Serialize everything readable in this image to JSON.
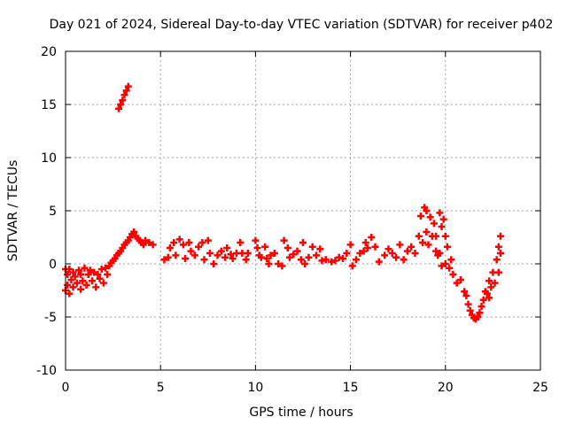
{
  "chart_data": {
    "type": "scatter",
    "title": "Day 021 of 2024, Sidereal Day-to-day VTEC variation (SDTVAR) for receiver p402",
    "xlabel": "GPS time / hours",
    "ylabel": "SDTVAR / TECUs",
    "xlim": [
      0,
      25
    ],
    "ylim": [
      -10,
      20
    ],
    "xticks": [
      0,
      5,
      10,
      15,
      20,
      25
    ],
    "xtick_labels": [
      "0",
      "5",
      "10",
      "15",
      "20",
      "25"
    ],
    "yticks": [
      -10,
      -5,
      0,
      5,
      10,
      15,
      20
    ],
    "ytick_labels": [
      "-10",
      "-5",
      "0",
      "5",
      "10",
      "15",
      "20"
    ],
    "grid": true,
    "marker": "+",
    "series": [
      {
        "name": "SDTVAR",
        "color": "#ff0000",
        "points": [
          [
            0.0,
            -0.5
          ],
          [
            0.0,
            -2.5
          ],
          [
            0.1,
            -1.0
          ],
          [
            0.1,
            -2.0
          ],
          [
            0.2,
            -0.5
          ],
          [
            0.2,
            -2.8
          ],
          [
            0.3,
            -1.5
          ],
          [
            0.4,
            -0.8
          ],
          [
            0.4,
            -2.2
          ],
          [
            0.5,
            -1.2
          ],
          [
            0.6,
            -1.8
          ],
          [
            0.7,
            -0.6
          ],
          [
            0.8,
            -1.0
          ],
          [
            0.8,
            -2.4
          ],
          [
            0.9,
            -1.6
          ],
          [
            1.0,
            -0.4
          ],
          [
            1.1,
            -2.0
          ],
          [
            1.2,
            -1.0
          ],
          [
            1.3,
            -0.6
          ],
          [
            1.4,
            -1.6
          ],
          [
            1.5,
            -0.8
          ],
          [
            1.6,
            -2.2
          ],
          [
            1.7,
            -1.0
          ],
          [
            1.8,
            -1.4
          ],
          [
            1.9,
            -0.5
          ],
          [
            2.0,
            -1.8
          ],
          [
            2.1,
            -0.4
          ],
          [
            2.2,
            -1.0
          ],
          [
            2.3,
            -0.2
          ],
          [
            2.4,
            0.1
          ],
          [
            2.5,
            0.3
          ],
          [
            2.6,
            0.5
          ],
          [
            2.7,
            0.8
          ],
          [
            2.8,
            1.0
          ],
          [
            2.9,
            1.2
          ],
          [
            3.0,
            1.5
          ],
          [
            3.1,
            1.8
          ],
          [
            3.2,
            2.0
          ],
          [
            3.3,
            2.2
          ],
          [
            3.4,
            2.5
          ],
          [
            3.5,
            2.8
          ],
          [
            3.6,
            3.0
          ],
          [
            3.7,
            2.6
          ],
          [
            3.8,
            2.4
          ],
          [
            3.9,
            2.2
          ],
          [
            4.0,
            2.0
          ],
          [
            4.1,
            1.8
          ],
          [
            4.2,
            2.2
          ],
          [
            4.4,
            2.0
          ],
          [
            4.6,
            1.8
          ],
          [
            2.8,
            14.6
          ],
          [
            2.9,
            15.0
          ],
          [
            3.0,
            15.4
          ],
          [
            3.1,
            15.9
          ],
          [
            3.2,
            16.3
          ],
          [
            3.3,
            16.7
          ],
          [
            5.2,
            0.4
          ],
          [
            5.4,
            0.6
          ],
          [
            5.5,
            1.5
          ],
          [
            5.7,
            2.0
          ],
          [
            5.8,
            0.8
          ],
          [
            6.0,
            2.3
          ],
          [
            6.2,
            1.8
          ],
          [
            6.3,
            0.5
          ],
          [
            6.5,
            2.0
          ],
          [
            6.6,
            1.2
          ],
          [
            6.8,
            0.8
          ],
          [
            7.0,
            1.6
          ],
          [
            7.2,
            2.0
          ],
          [
            7.3,
            0.4
          ],
          [
            7.5,
            2.2
          ],
          [
            7.6,
            1.0
          ],
          [
            7.8,
            0.0
          ],
          [
            8.0,
            0.8
          ],
          [
            8.2,
            1.2
          ],
          [
            8.4,
            0.6
          ],
          [
            8.5,
            1.5
          ],
          [
            8.7,
            0.9
          ],
          [
            8.8,
            0.5
          ],
          [
            9.0,
            1.0
          ],
          [
            9.2,
            2.0
          ],
          [
            9.3,
            1.0
          ],
          [
            9.5,
            0.4
          ],
          [
            9.6,
            1.0
          ],
          [
            10.0,
            2.2
          ],
          [
            10.1,
            1.5
          ],
          [
            10.2,
            0.8
          ],
          [
            10.3,
            0.6
          ],
          [
            10.5,
            1.6
          ],
          [
            10.6,
            0.5
          ],
          [
            10.7,
            0.0
          ],
          [
            10.8,
            0.8
          ],
          [
            11.0,
            1.0
          ],
          [
            11.2,
            0.0
          ],
          [
            11.4,
            -0.2
          ],
          [
            11.5,
            2.2
          ],
          [
            11.7,
            1.5
          ],
          [
            11.8,
            0.6
          ],
          [
            12.0,
            0.9
          ],
          [
            12.2,
            1.2
          ],
          [
            12.4,
            0.4
          ],
          [
            12.5,
            2.0
          ],
          [
            12.6,
            0.0
          ],
          [
            12.8,
            0.6
          ],
          [
            13.0,
            1.6
          ],
          [
            13.2,
            0.8
          ],
          [
            13.4,
            1.4
          ],
          [
            13.5,
            0.3
          ],
          [
            13.7,
            0.4
          ],
          [
            14.0,
            0.2
          ],
          [
            14.2,
            0.3
          ],
          [
            14.4,
            0.6
          ],
          [
            14.6,
            0.5
          ],
          [
            14.8,
            1.0
          ],
          [
            15.0,
            1.8
          ],
          [
            15.1,
            -0.2
          ],
          [
            15.3,
            0.4
          ],
          [
            15.5,
            1.0
          ],
          [
            15.7,
            1.2
          ],
          [
            15.8,
            2.0
          ],
          [
            15.9,
            1.5
          ],
          [
            16.1,
            2.5
          ],
          [
            16.3,
            1.6
          ],
          [
            16.5,
            0.2
          ],
          [
            16.8,
            0.8
          ],
          [
            17.0,
            1.4
          ],
          [
            17.2,
            1.0
          ],
          [
            17.4,
            0.6
          ],
          [
            17.6,
            1.8
          ],
          [
            17.8,
            0.4
          ],
          [
            18.0,
            1.2
          ],
          [
            18.2,
            1.6
          ],
          [
            18.4,
            1.0
          ],
          [
            18.6,
            2.6
          ],
          [
            18.7,
            4.5
          ],
          [
            18.8,
            2.0
          ],
          [
            18.9,
            5.3
          ],
          [
            19.0,
            3.0
          ],
          [
            19.0,
            5.0
          ],
          [
            19.1,
            1.8
          ],
          [
            19.2,
            4.4
          ],
          [
            19.3,
            2.6
          ],
          [
            19.4,
            3.8
          ],
          [
            19.5,
            1.2
          ],
          [
            19.5,
            2.6
          ],
          [
            19.6,
            0.8
          ],
          [
            19.7,
            1.0
          ],
          [
            19.7,
            4.8
          ],
          [
            19.8,
            -0.2
          ],
          [
            19.8,
            3.5
          ],
          [
            19.9,
            4.2
          ],
          [
            20.0,
            2.6
          ],
          [
            20.0,
            0.0
          ],
          [
            20.1,
            1.6
          ],
          [
            20.2,
            -0.4
          ],
          [
            20.3,
            0.4
          ],
          [
            20.4,
            -1.0
          ],
          [
            20.6,
            -1.8
          ],
          [
            20.8,
            -1.5
          ],
          [
            21.0,
            -2.6
          ],
          [
            21.1,
            -3.0
          ],
          [
            21.2,
            -3.8
          ],
          [
            21.3,
            -4.4
          ],
          [
            21.4,
            -4.8
          ],
          [
            21.5,
            -5.1
          ],
          [
            21.6,
            -5.2
          ],
          [
            21.7,
            -5.0
          ],
          [
            21.8,
            -4.6
          ],
          [
            21.9,
            -4.0
          ],
          [
            22.0,
            -3.4
          ],
          [
            22.1,
            -2.6
          ],
          [
            22.2,
            -2.8
          ],
          [
            22.3,
            -1.6
          ],
          [
            22.3,
            -3.2
          ],
          [
            22.4,
            -2.2
          ],
          [
            22.5,
            -0.8
          ],
          [
            22.6,
            -1.8
          ],
          [
            22.7,
            0.4
          ],
          [
            22.8,
            -0.8
          ],
          [
            22.8,
            1.6
          ],
          [
            22.9,
            1.0
          ],
          [
            22.9,
            2.6
          ]
        ]
      }
    ]
  }
}
